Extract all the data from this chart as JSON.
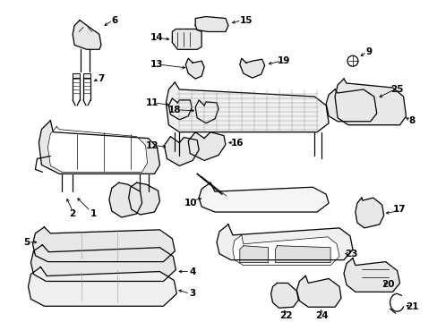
{
  "background_color": "#ffffff",
  "line_color": "#000000",
  "figsize": [
    4.89,
    3.6
  ],
  "dpi": 100,
  "lw": 0.9
}
